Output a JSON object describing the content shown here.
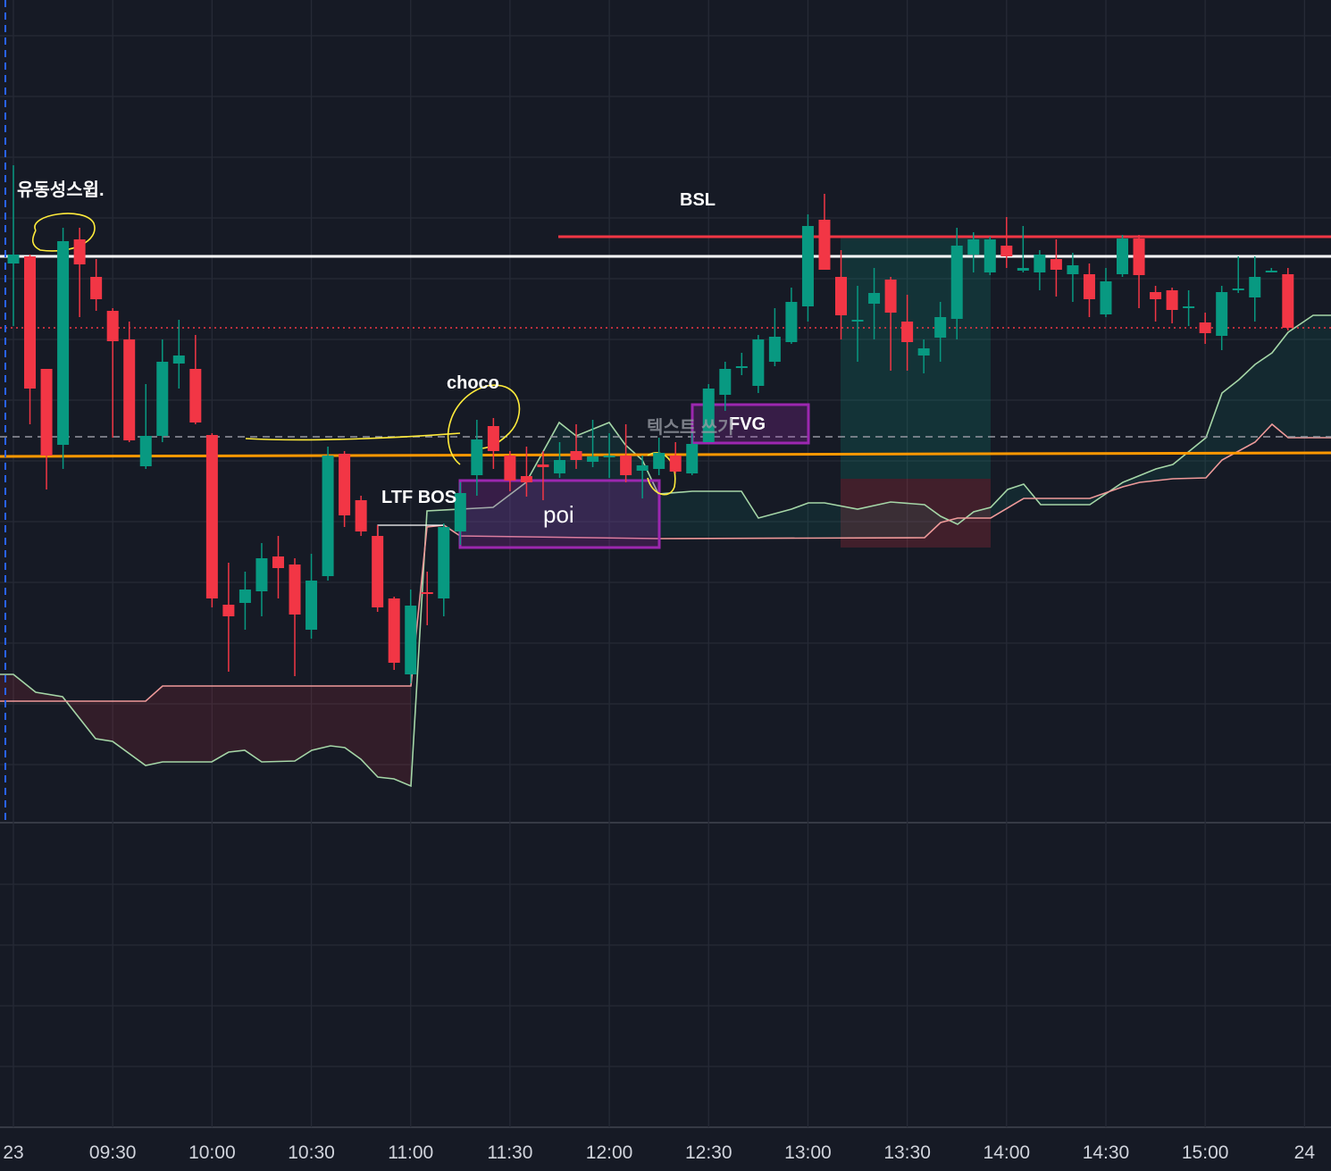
{
  "chart_data": {
    "type": "candlestick",
    "up_color": "#089981",
    "down_color": "#f23645",
    "ylim": [
      80,
      1000
    ],
    "categories": [
      "23",
      null,
      null,
      null,
      null,
      null,
      "09:30",
      null,
      null,
      null,
      null,
      null,
      "10:00",
      null,
      null,
      null,
      null,
      null,
      "10:30",
      null,
      null,
      null,
      null,
      null,
      "11:00",
      null,
      null,
      null,
      null,
      null,
      "11:30",
      null,
      null,
      null,
      null,
      null,
      "12:00",
      null,
      null,
      null,
      null,
      null,
      "12:30",
      null,
      null,
      null,
      null,
      null,
      "13:00",
      null,
      null,
      null,
      null,
      null,
      "13:30",
      null,
      null,
      null,
      null,
      null,
      "14:00",
      null,
      null,
      null,
      null,
      null,
      "14:30",
      null,
      null,
      null,
      null,
      null,
      "15:00",
      null,
      null,
      null,
      null,
      null,
      "24"
    ],
    "open": [
      705,
      713,
      587,
      502,
      732,
      690,
      652,
      620,
      478,
      512,
      593,
      587,
      513,
      323,
      325,
      338,
      377,
      368,
      295,
      355,
      492,
      440,
      400,
      330,
      245,
      337,
      330,
      405,
      468,
      523,
      490,
      467,
      480,
      470,
      495,
      483,
      488,
      490,
      473,
      475,
      490,
      470,
      505,
      558,
      590,
      568,
      595,
      617,
      657,
      754,
      690,
      640,
      660,
      687,
      640,
      602,
      622,
      643,
      715,
      695,
      725,
      697,
      695,
      710,
      693,
      693,
      648,
      693,
      733,
      673,
      675,
      657,
      639,
      624,
      675,
      667,
      697,
      693,
      null
    ],
    "high": [
      815,
      715,
      587,
      745,
      745,
      710,
      655,
      640,
      570,
      620,
      642,
      625,
      515,
      370,
      360,
      392,
      400,
      375,
      380,
      500,
      495,
      445,
      412,
      332,
      340,
      360,
      414,
      460,
      530,
      532,
      495,
      500,
      495,
      505,
      525,
      530,
      515,
      525,
      490,
      510,
      505,
      515,
      570,
      595,
      605,
      625,
      655,
      678,
      760,
      783,
      720,
      680,
      700,
      690,
      670,
      620,
      662,
      745,
      740,
      735,
      757,
      747,
      720,
      732,
      717,
      705,
      700,
      737,
      737,
      680,
      678,
      675,
      650,
      680,
      713,
      713,
      700,
      700,
      null
    ],
    "low": [
      635,
      525,
      452,
      475,
      645,
      652,
      510,
      505,
      475,
      505,
      565,
      525,
      320,
      248,
      295,
      310,
      330,
      243,
      285,
      350,
      410,
      400,
      315,
      250,
      235,
      300,
      310,
      390,
      445,
      475,
      450,
      444,
      440,
      465,
      475,
      477,
      465,
      460,
      442,
      468,
      470,
      468,
      505,
      540,
      580,
      560,
      590,
      615,
      640,
      698,
      620,
      595,
      620,
      585,
      585,
      582,
      595,
      620,
      695,
      692,
      700,
      695,
      675,
      668,
      662,
      645,
      645,
      690,
      655,
      640,
      638,
      635,
      615,
      608,
      672,
      640,
      695,
      630,
      null
    ],
    "close": [
      715,
      565,
      490,
      730,
      704,
      665,
      618,
      507,
      512,
      595,
      602,
      527,
      330,
      310,
      340,
      375,
      364,
      312,
      350,
      490,
      423,
      405,
      320,
      258,
      322,
      335,
      410,
      448,
      508,
      495,
      462,
      460,
      477,
      485,
      485,
      489,
      490,
      468,
      479,
      493,
      472,
      503,
      565,
      587,
      590,
      620,
      623,
      662,
      747,
      698,
      647,
      642,
      672,
      650,
      617,
      610,
      645,
      725,
      732,
      732,
      713,
      700,
      715,
      698,
      703,
      665,
      685,
      733,
      692,
      665,
      653,
      657,
      627,
      673,
      677,
      690,
      697,
      633,
      null
    ],
    "annotations": [
      "유동성스윕.",
      "BSL",
      "choco",
      "LTF BOS",
      "poi",
      "FVG",
      "텍스트 쓰기"
    ]
  }
}
